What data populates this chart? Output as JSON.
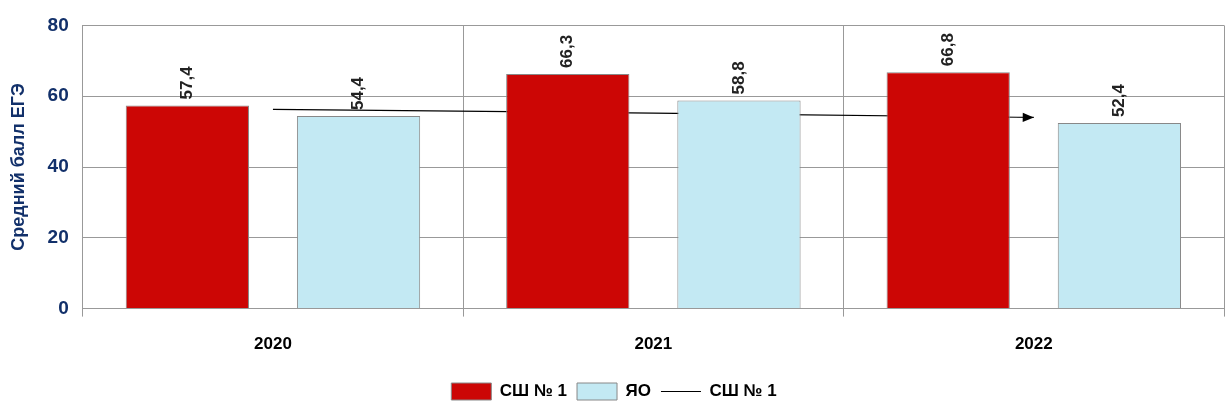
{
  "chart_data": {
    "type": "bar",
    "ylabel": "Средний балл ЕГЭ",
    "categories": [
      "2020",
      "2021",
      "2022"
    ],
    "series": [
      {
        "name": "СШ № 1",
        "color": "#cc0605",
        "values": [
          57.4,
          66.3,
          66.8
        ],
        "value_labels": [
          "57,4",
          "66,3",
          "66,8"
        ]
      },
      {
        "name": "ЯО",
        "color": "#c3e9f3",
        "values": [
          54.4,
          58.8,
          52.4
        ],
        "value_labels": [
          "54,4",
          "58,8",
          "52,4"
        ]
      },
      {
        "name": "СШ № 1",
        "type": "line",
        "color": "#000000",
        "values": [
          56.3,
          55.2,
          54.0
        ],
        "marker": "none"
      }
    ],
    "ylim": [
      0,
      80
    ],
    "yticks": [
      0,
      20,
      40,
      60,
      80
    ],
    "grid": true,
    "legend": "bottom"
  }
}
